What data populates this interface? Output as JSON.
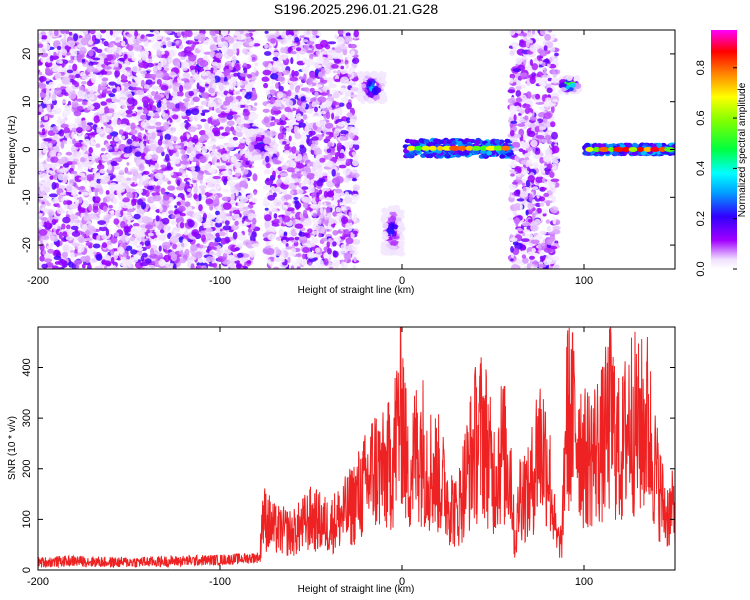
{
  "title": "S196.2025.296.01.21.G28",
  "chart_data": [
    {
      "type": "heatmap",
      "xlabel": "Height of straight line (km)",
      "ylabel": "Frequency (Hz)",
      "xlim": [
        -200,
        150
      ],
      "ylim": [
        -25,
        25
      ],
      "x_ticks": [
        "-200",
        "-100",
        "0",
        "100"
      ],
      "y_ticks": [
        "20",
        "10",
        "0",
        "-10",
        "-20"
      ],
      "colorbar": {
        "label": "Normalized spectral amplitude",
        "range": [
          0.0,
          0.95
        ],
        "ticks": [
          "0.0",
          "0.2",
          "0.4",
          "0.6",
          "0.8"
        ]
      },
      "features": [
        {
          "x_range": [
            -200,
            -80
          ],
          "freq_range": [
            -25,
            25
          ],
          "pattern": "scattered noise",
          "amplitude": 0.1
        },
        {
          "x_range": [
            -85,
            -70
          ],
          "freq_range": [
            -2,
            4
          ],
          "pattern": "cluster",
          "amplitude": 0.3
        },
        {
          "x_range": [
            -75,
            -25
          ],
          "freq_range": [
            -25,
            25
          ],
          "pattern": "scattered noise",
          "amplitude": 0.1
        },
        {
          "x_range": [
            -23,
            -10
          ],
          "freq_range": [
            10,
            16
          ],
          "pattern": "cluster",
          "amplitude": 0.4
        },
        {
          "x_range": [
            -10,
            0
          ],
          "freq_range": [
            -22,
            -12
          ],
          "pattern": "cluster",
          "amplitude": 0.3
        },
        {
          "x_range": [
            2,
            60
          ],
          "freq_range": [
            -1.5,
            2
          ],
          "pattern": "line",
          "amplitude": 0.9
        },
        {
          "x_range": [
            60,
            85
          ],
          "freq_range": [
            -25,
            25
          ],
          "pattern": "scattered noise",
          "amplitude": 0.1
        },
        {
          "x_range": [
            87,
            97
          ],
          "freq_range": [
            12,
            15
          ],
          "pattern": "cluster",
          "amplitude": 0.9
        },
        {
          "x_range": [
            100,
            150
          ],
          "freq_range": [
            -1,
            1
          ],
          "pattern": "line",
          "amplitude": 0.95
        }
      ]
    },
    {
      "type": "line",
      "xlabel": "Height of straight line (km)",
      "ylabel": "SNR (10 * v/v)",
      "xlim": [
        -200,
        150
      ],
      "ylim": [
        0,
        480
      ],
      "x_ticks": [
        "-200",
        "-100",
        "0",
        "100"
      ],
      "y_ticks": [
        "0",
        "100",
        "200",
        "300",
        "400"
      ],
      "series": [
        {
          "color": "#ee2222",
          "x": [
            -200,
            -180,
            -160,
            -140,
            -120,
            -100,
            -90,
            -78,
            -77,
            -70,
            -60,
            -50,
            -40,
            -30,
            -20,
            -15,
            -10,
            -5,
            0,
            3,
            5,
            10,
            15,
            20,
            25,
            30,
            35,
            40,
            45,
            48,
            50,
            55,
            60,
            62,
            65,
            70,
            75,
            80,
            85,
            88,
            90,
            95,
            97,
            100,
            105,
            110,
            115,
            120,
            125,
            130,
            135,
            140,
            145,
            150
          ],
          "values": [
            15,
            18,
            15,
            16,
            18,
            20,
            22,
            25,
            150,
            110,
            100,
            140,
            120,
            160,
            230,
            280,
            260,
            300,
            470,
            250,
            280,
            350,
            280,
            260,
            200,
            150,
            250,
            340,
            380,
            300,
            250,
            330,
            260,
            60,
            220,
            200,
            350,
            300,
            80,
            80,
            420,
            400,
            380,
            300,
            320,
            340,
            420,
            300,
            420,
            380,
            400,
            250,
            150,
            170
          ]
        }
      ]
    }
  ]
}
